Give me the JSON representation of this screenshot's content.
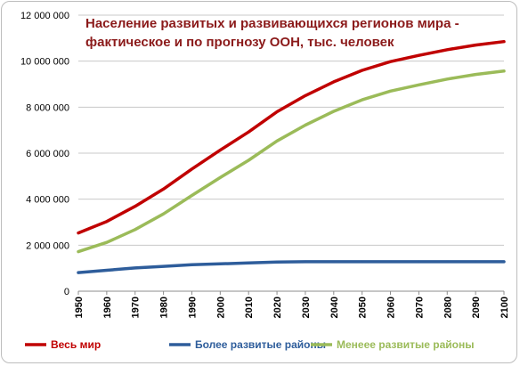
{
  "chart_data": {
    "type": "line",
    "title": [
      "Население развитых и развивающихся регионов мира -",
      "фактическое и по прогнозу ООН, тыс. человек"
    ],
    "xlabel": "",
    "ylabel": "",
    "x": [
      1950,
      1960,
      1970,
      1980,
      1990,
      2000,
      2010,
      2020,
      2030,
      2040,
      2050,
      2060,
      2070,
      2080,
      2090,
      2100
    ],
    "x_ticks": [
      "1950",
      "1960",
      "1970",
      "1980",
      "1990",
      "2000",
      "2010",
      "2020",
      "2030",
      "2040",
      "2050",
      "2060",
      "2070",
      "2080",
      "2090",
      "2100"
    ],
    "y_ticks": [
      "0",
      "2 000 000",
      "4 000 000",
      "6 000 000",
      "8 000 000",
      "10 000 000",
      "12 000 000"
    ],
    "y_tick_values": [
      0,
      2000000,
      4000000,
      6000000,
      8000000,
      10000000,
      12000000
    ],
    "ylim": [
      0,
      12000000
    ],
    "xlim": [
      1950,
      2100
    ],
    "grid": true,
    "legend_position": "bottom",
    "series": [
      {
        "name": "Весь мир",
        "color": "#c00000",
        "values": [
          2530000,
          3030000,
          3690000,
          4440000,
          5310000,
          6130000,
          6920000,
          7800000,
          8500000,
          9100000,
          9600000,
          9980000,
          10250000,
          10500000,
          10700000,
          10850000
        ]
      },
      {
        "name": "Более развитые районы",
        "color": "#2e5d9b",
        "values": [
          810000,
          910000,
          1010000,
          1080000,
          1150000,
          1190000,
          1230000,
          1270000,
          1280000,
          1280000,
          1280000,
          1280000,
          1280000,
          1280000,
          1280000,
          1280000
        ]
      },
      {
        "name": "Менеее развитые районы",
        "color": "#9bbb59",
        "values": [
          1720000,
          2120000,
          2680000,
          3360000,
          4160000,
          4940000,
          5690000,
          6530000,
          7220000,
          7820000,
          8320000,
          8700000,
          8970000,
          9220000,
          9420000,
          9570000
        ]
      }
    ]
  }
}
